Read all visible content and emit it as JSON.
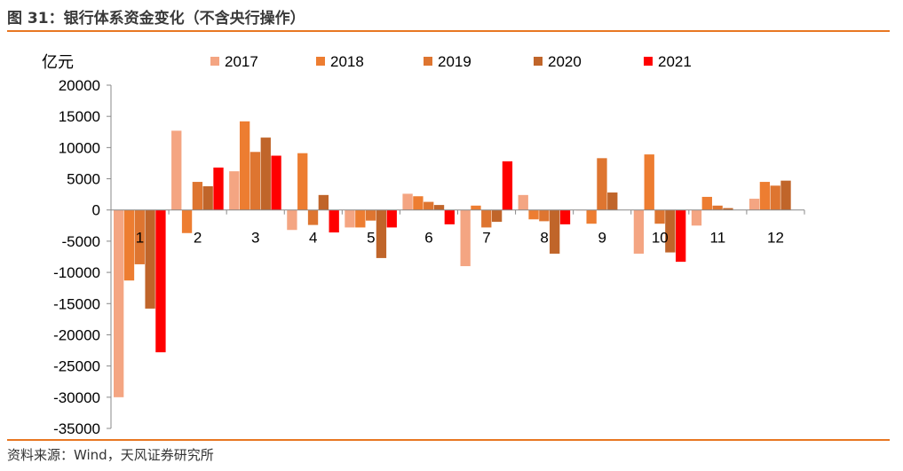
{
  "title": "图 31：银行体系资金变化（不含央行操作）",
  "source": "资料来源：Wind，天风证券研究所",
  "colors": {
    "rule": "#e87722"
  },
  "chart_data": {
    "type": "bar",
    "unit_label": "亿元",
    "categories": [
      "1",
      "2",
      "3",
      "4",
      "5",
      "6",
      "7",
      "8",
      "9",
      "10",
      "11",
      "12"
    ],
    "ylim": [
      -35000,
      20000
    ],
    "yticks": [
      20000,
      15000,
      10000,
      5000,
      0,
      -5000,
      -10000,
      -15000,
      -20000,
      -25000,
      -30000,
      -35000
    ],
    "legend_position": "top",
    "grid": false,
    "series": [
      {
        "name": "2017",
        "color": "#f4a582",
        "values": [
          -30000,
          12700,
          6200,
          -3200,
          -2800,
          2600,
          -9000,
          2400,
          0,
          -7000,
          -2500,
          1800
        ]
      },
      {
        "name": "2018",
        "color": "#ed7d31",
        "values": [
          -11300,
          -3700,
          14200,
          9100,
          -2800,
          2200,
          700,
          -1500,
          -2200,
          8900,
          2100,
          4500
        ]
      },
      {
        "name": "2019",
        "color": "#de7530",
        "values": [
          -8700,
          4500,
          9300,
          -2400,
          -1700,
          1300,
          -2800,
          -1800,
          8300,
          -2200,
          700,
          3900
        ]
      },
      {
        "name": "2020",
        "color": "#c0652a",
        "values": [
          -15800,
          3800,
          11600,
          2400,
          -7700,
          800,
          -1900,
          -7000,
          2800,
          -6800,
          300,
          4700
        ]
      },
      {
        "name": "2021",
        "color": "#ff0000",
        "values": [
          -22800,
          6800,
          8700,
          -3600,
          -2800,
          -2300,
          7800,
          -2300,
          null,
          -8300,
          null,
          null
        ]
      }
    ]
  }
}
